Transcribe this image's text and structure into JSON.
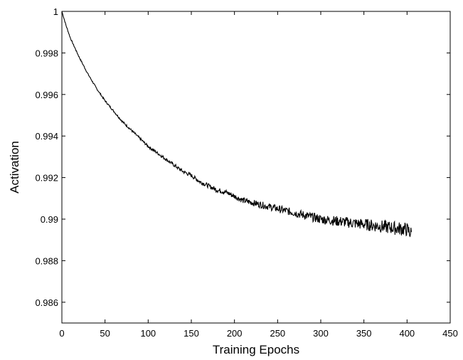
{
  "chart_data": {
    "type": "line",
    "title": "",
    "xlabel": "Training Epochs",
    "ylabel": "Activation",
    "xlim": [
      0,
      450
    ],
    "ylim": [
      0.985,
      1.0
    ],
    "xticks": [
      "0",
      "50",
      "100",
      "150",
      "200",
      "250",
      "300",
      "350",
      "400",
      "450"
    ],
    "yticks": [
      "0.986",
      "0.988",
      "0.99",
      "0.992",
      "0.994",
      "0.996",
      "0.998",
      "1"
    ],
    "grid": false,
    "legend": "none",
    "line_color": "#000000",
    "series": [
      {
        "x": [
          0,
          5,
          10,
          20,
          30,
          40,
          50,
          60,
          70,
          80,
          90,
          100,
          110,
          120,
          130,
          140,
          150,
          160,
          170,
          180,
          190,
          200,
          210,
          220,
          230,
          240,
          250,
          260,
          270,
          280,
          290,
          300,
          310,
          320,
          330,
          340,
          350,
          360,
          370,
          380,
          390,
          400,
          405
        ],
        "values": [
          1.0,
          0.9993,
          0.9987,
          0.9978,
          0.997,
          0.9963,
          0.9957,
          0.9952,
          0.9947,
          0.9943,
          0.9939,
          0.9935,
          0.9932,
          0.9929,
          0.9926,
          0.9923,
          0.9921,
          0.9918,
          0.9916,
          0.9914,
          0.9913,
          0.9911,
          0.9909,
          0.9908,
          0.9907,
          0.9906,
          0.9905,
          0.9904,
          0.9903,
          0.9902,
          0.9901,
          0.99,
          0.98995,
          0.9899,
          0.98985,
          0.9898,
          0.98975,
          0.9897,
          0.98965,
          0.9896,
          0.98955,
          0.9895,
          0.9893
        ]
      }
    ]
  }
}
